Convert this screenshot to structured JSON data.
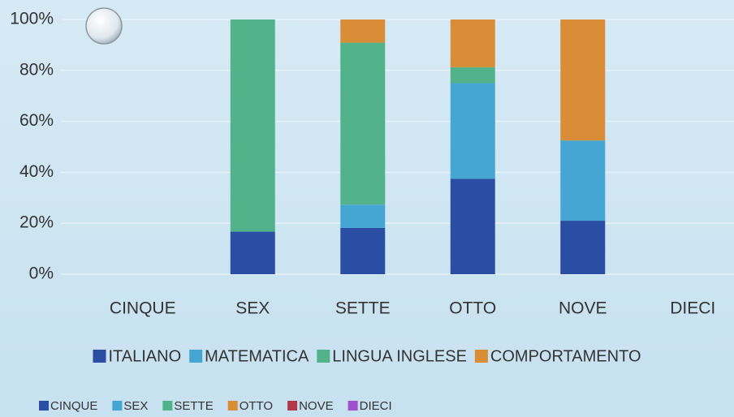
{
  "chart_data": {
    "type": "bar",
    "stacked": true,
    "categories": [
      "CINQUE",
      "SEX",
      "SETTE",
      "OTTO",
      "NOVE",
      "DIECI"
    ],
    "series": [
      {
        "name": "ITALIANO",
        "color": "#2a4ea3",
        "values": [
          0,
          16.7,
          18.2,
          37.5,
          21,
          0
        ]
      },
      {
        "name": "MATEMATICA",
        "color": "#45a6d3",
        "values": [
          0,
          0,
          9.1,
          37.5,
          31.5,
          0
        ]
      },
      {
        "name": "LINGUA INGLESE",
        "color": "#52b28a",
        "values": [
          0,
          83.3,
          63.6,
          6.25,
          0,
          0
        ]
      },
      {
        "name": "COMPORTAMENTO",
        "color": "#d98d37",
        "values": [
          0,
          0,
          9.1,
          18.75,
          47.5,
          0
        ]
      }
    ],
    "ylim": [
      0,
      100
    ],
    "yticks": [
      {
        "value": 0,
        "label": "0%"
      },
      {
        "value": 20,
        "label": "20%"
      },
      {
        "value": 40,
        "label": "40%"
      },
      {
        "value": 60,
        "label": "60%"
      },
      {
        "value": 80,
        "label": "80%"
      },
      {
        "value": 100,
        "label": "100%"
      }
    ],
    "grid": true,
    "legend2": [
      {
        "name": "CINQUE",
        "color": "#2a4ea3"
      },
      {
        "name": "SEX",
        "color": "#45a6d3"
      },
      {
        "name": "SETTE",
        "color": "#52b28a"
      },
      {
        "name": "OTTO",
        "color": "#d98d37"
      },
      {
        "name": "NOVE",
        "color": "#b03a4a"
      },
      {
        "name": "DIECI",
        "color": "#a04fd0"
      }
    ]
  }
}
